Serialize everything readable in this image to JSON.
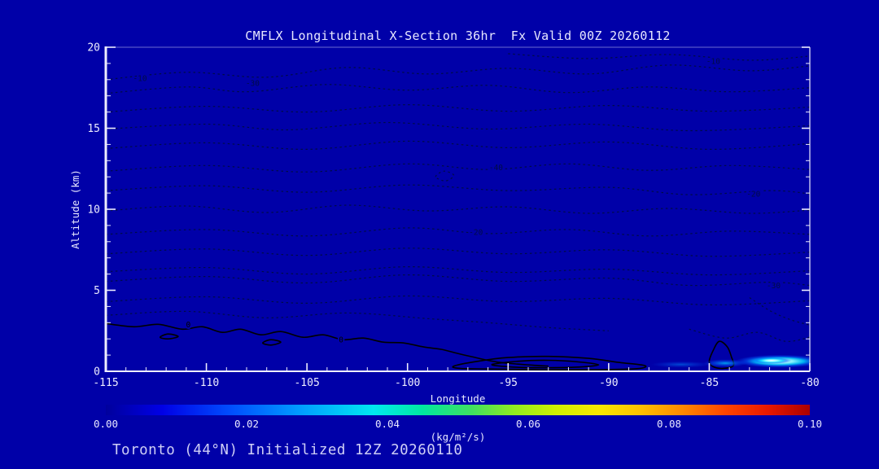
{
  "page": {
    "bg_color": "#0000A8",
    "title_color": "#E8E8FF",
    "footer_color": "#CFCFF6",
    "footer": "Toronto (44°N) Initialized 12Z 20260110"
  },
  "chart_data": {
    "type": "contour",
    "title": "CMFLX Longitudinal X-Section 36hr  Fx Valid 00Z 20260112",
    "xlabel": "Longitude",
    "ylabel": "Altitude (km)",
    "x_range": [
      -115,
      -80
    ],
    "y_range": [
      0,
      20
    ],
    "x_ticks": [
      -115,
      -110,
      -105,
      -100,
      -95,
      -90,
      -85,
      -80
    ],
    "y_ticks": [
      0,
      5,
      10,
      15,
      20
    ],
    "x_minor_step": 1,
    "y_minor_step": 1,
    "grid": false,
    "styles": {
      "background": "#0000A8",
      "axis_color": "#EDEDFF",
      "dashed_contour_color": "#000C46",
      "solid_contour_color": "#000000"
    },
    "contours": [
      {
        "style": "dashed",
        "points": [
          [
            -115,
            18.0
          ],
          [
            -111,
            18.45
          ],
          [
            -107,
            18.15
          ],
          [
            -103,
            18.75
          ],
          [
            -99,
            18.35
          ],
          [
            -95,
            18.7
          ],
          [
            -91,
            18.35
          ],
          [
            -87,
            18.9
          ],
          [
            -83,
            18.55
          ],
          [
            -80,
            18.85
          ]
        ],
        "labels": [
          {
            "text": "-10",
            "pos": [
              -113.3,
              18.1
            ]
          }
        ]
      },
      {
        "style": "dashed",
        "points": [
          [
            -115,
            17.15
          ],
          [
            -111,
            17.55
          ],
          [
            -108,
            17.25
          ],
          [
            -104,
            17.7
          ],
          [
            -100,
            17.35
          ],
          [
            -96,
            17.65
          ],
          [
            -92,
            17.2
          ],
          [
            -88,
            17.55
          ],
          [
            -84,
            17.25
          ],
          [
            -80,
            17.5
          ]
        ],
        "labels": [
          {
            "text": "-30",
            "pos": [
              -107.7,
              17.8
            ]
          }
        ]
      },
      {
        "style": "dashed",
        "points": [
          [
            -95,
            19.6
          ],
          [
            -91,
            19.3
          ],
          [
            -87,
            19.55
          ],
          [
            -83,
            19.2
          ],
          [
            -80,
            19.45
          ]
        ],
        "labels": [
          {
            "text": "-10",
            "pos": [
              -84.8,
              19.15
            ]
          }
        ]
      },
      {
        "style": "dashed",
        "points": [
          [
            -115,
            16.0
          ],
          [
            -110,
            16.35
          ],
          [
            -105,
            16.0
          ],
          [
            -100,
            16.45
          ],
          [
            -95,
            16.05
          ],
          [
            -90,
            16.4
          ],
          [
            -85,
            16.05
          ],
          [
            -80,
            16.3
          ]
        ]
      },
      {
        "style": "dashed",
        "points": [
          [
            -115,
            14.95
          ],
          [
            -110,
            15.25
          ],
          [
            -106,
            14.9
          ],
          [
            -101,
            15.35
          ],
          [
            -96,
            14.95
          ],
          [
            -91,
            15.25
          ],
          [
            -86,
            14.85
          ],
          [
            -80,
            15.15
          ]
        ]
      },
      {
        "style": "dashed",
        "points": [
          [
            -115,
            13.75
          ],
          [
            -110,
            14.1
          ],
          [
            -105,
            13.7
          ],
          [
            -100,
            14.2
          ],
          [
            -95,
            13.8
          ],
          [
            -90,
            14.15
          ],
          [
            -85,
            13.7
          ],
          [
            -80,
            14.05
          ]
        ]
      },
      {
        "style": "dashed",
        "points": [
          [
            -115,
            12.35
          ],
          [
            -110,
            12.7
          ],
          [
            -105,
            12.3
          ],
          [
            -100,
            12.8
          ],
          [
            -96,
            12.45
          ],
          [
            -92,
            12.8
          ],
          [
            -88,
            12.4
          ],
          [
            -84,
            12.7
          ],
          [
            -80,
            12.45
          ]
        ],
        "labels": [
          {
            "text": "-40",
            "pos": [
              -95.6,
              12.6
            ]
          }
        ]
      },
      {
        "style": "dashed",
        "points": [
          [
            -115,
            11.15
          ],
          [
            -110,
            11.45
          ],
          [
            -105,
            11.05
          ],
          [
            -100,
            11.5
          ],
          [
            -95,
            11.15
          ],
          [
            -90,
            11.35
          ],
          [
            -86,
            10.9
          ],
          [
            -82,
            11.15
          ],
          [
            -80,
            10.95
          ]
        ],
        "labels": [
          {
            "text": "-20",
            "pos": [
              -82.8,
              10.95
            ]
          }
        ]
      },
      {
        "style": "dashed",
        "points": [
          [
            -115,
            9.9
          ],
          [
            -111,
            10.2
          ],
          [
            -107,
            9.8
          ],
          [
            -103,
            10.25
          ],
          [
            -99,
            9.9
          ],
          [
            -95,
            10.15
          ],
          [
            -91,
            9.75
          ],
          [
            -87,
            10.05
          ],
          [
            -83,
            9.75
          ],
          [
            -80,
            9.95
          ]
        ]
      },
      {
        "style": "dashed",
        "points": [
          [
            -115,
            8.45
          ],
          [
            -110,
            8.75
          ],
          [
            -105,
            8.35
          ],
          [
            -100,
            8.85
          ],
          [
            -96,
            8.5
          ],
          [
            -92,
            8.75
          ],
          [
            -88,
            8.35
          ],
          [
            -84,
            8.65
          ],
          [
            -80,
            8.45
          ]
        ],
        "labels": [
          {
            "text": "-20",
            "pos": [
              -96.6,
              8.6
            ]
          }
        ]
      },
      {
        "style": "dashed",
        "points": [
          [
            -115,
            7.25
          ],
          [
            -110,
            7.55
          ],
          [
            -105,
            7.15
          ],
          [
            -100,
            7.6
          ],
          [
            -95,
            7.25
          ],
          [
            -90,
            7.5
          ],
          [
            -85,
            7.1
          ],
          [
            -80,
            7.35
          ]
        ]
      },
      {
        "style": "dashed",
        "points": [
          [
            -115,
            6.15
          ],
          [
            -110,
            6.4
          ],
          [
            -105,
            6.0
          ],
          [
            -100,
            6.45
          ],
          [
            -95,
            6.1
          ],
          [
            -90,
            6.3
          ],
          [
            -85,
            5.95
          ],
          [
            -80,
            6.2
          ]
        ]
      },
      {
        "style": "dashed",
        "points": [
          [
            -115,
            5.55
          ],
          [
            -110,
            5.85
          ],
          [
            -105,
            5.45
          ],
          [
            -100,
            5.95
          ],
          [
            -95,
            5.55
          ],
          [
            -90,
            5.75
          ],
          [
            -86,
            5.3
          ],
          [
            -82,
            5.5
          ],
          [
            -80,
            5.3
          ]
        ],
        "labels": [
          {
            "text": "-30",
            "pos": [
              -81.8,
              5.3
            ]
          }
        ]
      },
      {
        "style": "dashed",
        "points": [
          [
            -115,
            4.3
          ],
          [
            -110,
            4.6
          ],
          [
            -105,
            4.2
          ],
          [
            -100,
            4.65
          ],
          [
            -95,
            4.3
          ],
          [
            -90,
            4.5
          ],
          [
            -85,
            4.1
          ],
          [
            -80,
            4.35
          ]
        ]
      },
      {
        "style": "dashed",
        "points": [
          [
            -115,
            3.45
          ],
          [
            -111,
            3.7
          ],
          [
            -107,
            3.3
          ],
          [
            -103,
            3.6
          ],
          [
            -99,
            3.25
          ],
          [
            -96,
            3.0
          ],
          [
            -93,
            2.7
          ],
          [
            -90,
            2.5
          ]
        ]
      },
      {
        "style": "dashed",
        "points": [
          [
            -86,
            2.6
          ],
          [
            -84.2,
            2.05
          ],
          [
            -82.6,
            2.4
          ],
          [
            -81.2,
            1.85
          ],
          [
            -80,
            2.1
          ]
        ]
      },
      {
        "style": "dashed",
        "points": [
          [
            -83,
            4.55
          ],
          [
            -82,
            3.75
          ],
          [
            -81,
            3.2
          ],
          [
            -80,
            2.85
          ]
        ]
      },
      {
        "style": "dashed",
        "closed": true,
        "points": [
          [
            -98.6,
            12.0
          ],
          [
            -98.2,
            12.35
          ],
          [
            -97.7,
            12.1
          ],
          [
            -98.1,
            11.75
          ]
        ]
      },
      {
        "style": "solid",
        "points": [
          [
            -115,
            2.95
          ],
          [
            -113.6,
            2.75
          ],
          [
            -112.4,
            2.9
          ],
          [
            -111.2,
            2.6
          ],
          [
            -110.2,
            2.75
          ],
          [
            -109.2,
            2.4
          ],
          [
            -108.3,
            2.6
          ],
          [
            -107.3,
            2.25
          ],
          [
            -106.3,
            2.45
          ],
          [
            -105.2,
            2.1
          ],
          [
            -104.2,
            2.25
          ],
          [
            -103.2,
            1.95
          ],
          [
            -102.2,
            2.05
          ],
          [
            -101.2,
            1.8
          ],
          [
            -100.2,
            1.75
          ],
          [
            -99.2,
            1.5
          ],
          [
            -98.3,
            1.35
          ],
          [
            -97.5,
            1.1
          ],
          [
            -96.8,
            0.9
          ],
          [
            -96.1,
            0.7
          ],
          [
            -95.4,
            0.55
          ],
          [
            -94.6,
            0.45
          ],
          [
            -93.8,
            0.38
          ],
          [
            -93,
            0.32
          ]
        ],
        "labels": [
          {
            "text": "0",
            "pos": [
              -110.9,
              2.9
            ]
          },
          {
            "text": "0",
            "pos": [
              -103.3,
              1.95
            ]
          }
        ]
      },
      {
        "style": "solid",
        "closed": true,
        "points": [
          [
            -112.3,
            2.1
          ],
          [
            -111.9,
            2.3
          ],
          [
            -111.4,
            2.15
          ],
          [
            -111.9,
            2.0
          ]
        ]
      },
      {
        "style": "solid",
        "closed": true,
        "points": [
          [
            -107.2,
            1.75
          ],
          [
            -106.8,
            1.95
          ],
          [
            -106.3,
            1.8
          ],
          [
            -106.8,
            1.62
          ]
        ]
      },
      {
        "style": "solid",
        "closed": true,
        "points": [
          [
            -97.7,
            0.32
          ],
          [
            -96.5,
            0.62
          ],
          [
            -95,
            0.85
          ],
          [
            -93,
            0.92
          ],
          [
            -91,
            0.8
          ],
          [
            -89.5,
            0.55
          ],
          [
            -88.2,
            0.35
          ],
          [
            -88.6,
            0.16
          ],
          [
            -90.5,
            0.1
          ],
          [
            -93.5,
            0.1
          ],
          [
            -96,
            0.14
          ],
          [
            -97.4,
            0.18
          ]
        ]
      },
      {
        "style": "solid",
        "closed": true,
        "points": [
          [
            -95.8,
            0.42
          ],
          [
            -94.5,
            0.62
          ],
          [
            -93,
            0.68
          ],
          [
            -91.5,
            0.58
          ],
          [
            -90.5,
            0.4
          ],
          [
            -91.5,
            0.26
          ],
          [
            -93.5,
            0.22
          ],
          [
            -95,
            0.28
          ]
        ]
      },
      {
        "style": "solid",
        "closed": true,
        "points": [
          [
            -85.0,
            0.6
          ],
          [
            -84.8,
            1.3
          ],
          [
            -84.5,
            1.85
          ],
          [
            -84.1,
            1.5
          ],
          [
            -83.9,
            0.9
          ],
          [
            -83.8,
            0.35
          ],
          [
            -84.3,
            0.18
          ],
          [
            -84.8,
            0.28
          ]
        ]
      }
    ],
    "hotspot_gradients": {
      "strong": [
        [
          "0%",
          "#FFFFFF",
          1
        ],
        [
          "30%",
          "#8CFFFF",
          0.95
        ],
        [
          "55%",
          "#00D2FF",
          0.85
        ],
        [
          "75%",
          "#0064FF",
          0.55
        ],
        [
          "100%",
          "#0050FF",
          0
        ]
      ],
      "weak": [
        [
          "0%",
          "#00C8FF",
          0.8
        ],
        [
          "60%",
          "#0064FF",
          0.4
        ],
        [
          "100%",
          "#0050FF",
          0
        ]
      ],
      "faint": [
        [
          "0%",
          "#0096FF",
          0.5
        ],
        [
          "100%",
          "#0050FF",
          0
        ]
      ]
    },
    "hotspots": [
      {
        "grad": "strong",
        "lon": -81.5,
        "alt": 0.62,
        "rx": 2.2,
        "ry": 0.4
      },
      {
        "grad": "strong",
        "lon": -81.9,
        "alt": 0.66,
        "rx": 1.0,
        "ry": 0.2
      },
      {
        "grad": "weak",
        "lon": -84.2,
        "alt": 0.5,
        "rx": 1.1,
        "ry": 0.24
      },
      {
        "grad": "faint",
        "lon": -86.4,
        "alt": 0.42,
        "rx": 1.5,
        "ry": 0.2
      }
    ],
    "colorbar": {
      "label": "(kg/m²/s)",
      "min": 0,
      "max": 0.1,
      "tick_values": [
        0,
        0.02,
        0.04,
        0.06,
        0.08,
        0.1
      ],
      "tick_labels": [
        "0.00",
        "0.02",
        "0.04",
        "0.06",
        "0.08",
        "0.10"
      ],
      "stops": [
        [
          "0%",
          "#00009C"
        ],
        [
          "8%",
          "#0000E6"
        ],
        [
          "18%",
          "#0050FF"
        ],
        [
          "28%",
          "#00A0FF"
        ],
        [
          "38%",
          "#00E8F0"
        ],
        [
          "45%",
          "#00E8A0"
        ],
        [
          "52%",
          "#40E060"
        ],
        [
          "58%",
          "#90EC20"
        ],
        [
          "64%",
          "#D0F000"
        ],
        [
          "70%",
          "#F8E800"
        ],
        [
          "76%",
          "#FFC000"
        ],
        [
          "82%",
          "#FF8800"
        ],
        [
          "88%",
          "#FF4400"
        ],
        [
          "94%",
          "#E81800"
        ],
        [
          "100%",
          "#AA0000"
        ]
      ]
    }
  }
}
